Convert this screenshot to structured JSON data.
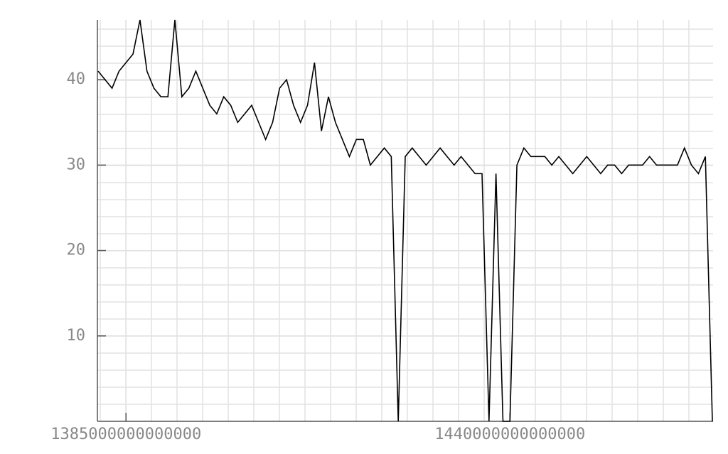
{
  "chart_data": {
    "type": "line",
    "x": [
      1381000000000000,
      1382000000000000,
      1383000000000000,
      1384000000000000,
      1385000000000000,
      1386000000000000,
      1387000000000000,
      1388000000000000,
      1389000000000000,
      1390000000000000,
      1391000000000000,
      1392000000000000,
      1393000000000000,
      1394000000000000,
      1395000000000000,
      1396000000000000,
      1397000000000000,
      1398000000000000,
      1399000000000000,
      1400000000000000,
      1401000000000000,
      1402000000000000,
      1403000000000000,
      1404000000000000,
      1405000000000000,
      1406000000000000,
      1407000000000000,
      1408000000000000,
      1409000000000000,
      1410000000000000,
      1411000000000000,
      1412000000000000,
      1413000000000000,
      1414000000000000,
      1415000000000000,
      1416000000000000,
      1417000000000000,
      1418000000000000,
      1419000000000000,
      1420000000000000,
      1421000000000000,
      1422000000000000,
      1423000000000000,
      1424000000000000,
      1425000000000000,
      1426000000000000,
      1427000000000000,
      1428000000000000,
      1429000000000000,
      1430000000000000,
      1431000000000000,
      1432000000000000,
      1433000000000000,
      1434000000000000,
      1435000000000000,
      1436000000000000,
      1437000000000000,
      1438000000000000,
      1439000000000000,
      1440000000000000,
      1441000000000000,
      1442000000000000,
      1443000000000000,
      1444000000000000,
      1445000000000000,
      1446000000000000,
      1447000000000000,
      1448000000000000,
      1449000000000000,
      1450000000000000,
      1451000000000000,
      1452000000000000,
      1453000000000000,
      1454000000000000,
      1455000000000000,
      1456000000000000,
      1457000000000000,
      1458000000000000,
      1459000000000000,
      1460000000000000,
      1461000000000000,
      1462000000000000,
      1463000000000000,
      1464000000000000,
      1465000000000000,
      1466000000000000,
      1467000000000000,
      1468000000000000,
      1469000000000000
    ],
    "values": [
      41,
      40,
      39,
      41,
      42,
      43,
      47,
      41,
      39,
      38,
      38,
      47,
      38,
      39,
      41,
      39,
      37,
      36,
      38,
      37,
      35,
      36,
      37,
      35,
      33,
      35,
      39,
      40,
      37,
      35,
      37,
      42,
      34,
      38,
      35,
      33,
      31,
      33,
      33,
      30,
      31,
      32,
      31,
      0,
      31,
      32,
      31,
      30,
      31,
      32,
      31,
      30,
      31,
      30,
      29,
      29,
      0,
      29,
      0,
      0,
      30,
      32,
      31,
      31,
      31,
      30,
      31,
      30,
      29,
      30,
      31,
      30,
      29,
      30,
      30,
      29,
      30,
      30,
      30,
      31,
      30,
      30,
      30,
      30,
      32,
      30,
      29,
      31,
      0
    ],
    "color": "#000000",
    "xlim": [
      1380900000000000,
      1469100000000000
    ],
    "xticks": [
      1385000000000000,
      1440000000000000
    ],
    "ylim": [
      0,
      47
    ],
    "yticks": [
      10,
      20,
      30,
      40
    ],
    "grid": true
  }
}
